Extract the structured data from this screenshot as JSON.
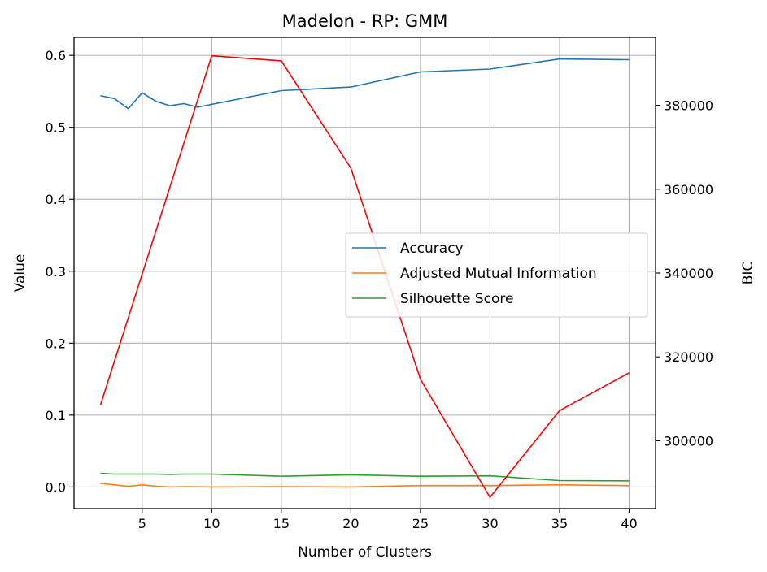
{
  "chart_data": {
    "type": "line",
    "title": "Madelon - RP: GMM",
    "xlabel": "Number of Clusters",
    "ylabel": "Value",
    "y2label": "BIC",
    "xlim": [
      0.1,
      41.9
    ],
    "ylim": [
      -0.03,
      0.625
    ],
    "y2lim": [
      283800,
      396200
    ],
    "xticks": [
      5,
      10,
      15,
      20,
      25,
      30,
      35,
      40
    ],
    "yticks": [
      0.0,
      0.1,
      0.2,
      0.3,
      0.4,
      0.5,
      0.6
    ],
    "y2ticks": [
      300000,
      320000,
      340000,
      360000,
      380000
    ],
    "grid": true,
    "legend_position": "center-right",
    "series": [
      {
        "name": "Accuracy",
        "axis": "left",
        "color": "#1f77b4",
        "legend": true,
        "x": [
          2,
          3,
          4,
          5,
          6,
          7,
          8,
          9,
          10,
          15,
          20,
          25,
          30,
          35,
          40
        ],
        "y": [
          0.544,
          0.54,
          0.526,
          0.548,
          0.536,
          0.53,
          0.533,
          0.528,
          0.532,
          0.551,
          0.556,
          0.577,
          0.581,
          0.595,
          0.594
        ]
      },
      {
        "name": "Adjusted Mutual Information",
        "axis": "left",
        "color": "#ff7f0e",
        "legend": true,
        "x": [
          2,
          3,
          4,
          5,
          6,
          7,
          8,
          9,
          10,
          15,
          20,
          25,
          30,
          35,
          40
        ],
        "y": [
          0.005,
          0.003,
          0.001,
          0.003,
          0.001,
          0.0,
          0.0005,
          0.0003,
          0.0,
          0.0005,
          0.0,
          0.002,
          0.002,
          0.003,
          0.002
        ]
      },
      {
        "name": "Silhouette Score",
        "axis": "left",
        "color": "#2ca02c",
        "legend": true,
        "x": [
          2,
          3,
          4,
          5,
          6,
          7,
          8,
          9,
          10,
          15,
          20,
          25,
          30,
          35,
          40
        ],
        "y": [
          0.019,
          0.018,
          0.018,
          0.018,
          0.018,
          0.0175,
          0.018,
          0.018,
          0.018,
          0.015,
          0.017,
          0.015,
          0.0155,
          0.009,
          0.0085
        ]
      },
      {
        "name": "",
        "axis": "right",
        "color": "#ff0000",
        "legend": false,
        "x": [
          2,
          10,
          15,
          20,
          25,
          30,
          35,
          40
        ],
        "y": [
          308500,
          391800,
          390600,
          365000,
          314700,
          286500,
          307200,
          316200
        ]
      }
    ]
  }
}
